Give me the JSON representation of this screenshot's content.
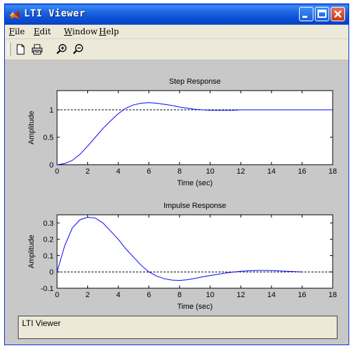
{
  "window": {
    "title": "LTI Viewer"
  },
  "menu": {
    "file": {
      "key": "F",
      "rest": "ile"
    },
    "edit": {
      "key": "E",
      "rest": "dit"
    },
    "window": {
      "key": "W",
      "rest": "indow"
    },
    "help": {
      "key": "H",
      "rest": "elp"
    }
  },
  "toolbar_icons": [
    "new-document-icon",
    "print-icon",
    "zoom-in-icon",
    "zoom-out-icon"
  ],
  "status": {
    "text": "LTI Viewer"
  },
  "colors": {
    "titlebar": "#0b4fd6",
    "response_line": "#0000ff",
    "plot_bg": "#ffffff",
    "figure_bg": "#c8c8c8"
  },
  "chart_data": [
    {
      "type": "line",
      "title": "Step Response",
      "xlabel": "Time (sec)",
      "ylabel": "Amplitude",
      "xlim": [
        0,
        18
      ],
      "ylim": [
        0,
        1.35
      ],
      "xticks": [
        "0",
        "2",
        "4",
        "6",
        "8",
        "10",
        "12",
        "14",
        "16",
        "18"
      ],
      "yticks": [
        "0",
        "0.5",
        "1"
      ],
      "reference_line": 1,
      "series": [
        {
          "x": [
            0,
            0.5,
            1,
            1.5,
            2,
            2.5,
            3,
            3.5,
            4,
            4.5,
            5,
            5.5,
            6,
            6.5,
            7,
            7.5,
            8,
            8.5,
            9,
            9.5,
            10,
            10.5,
            11,
            11.5,
            12,
            13,
            14,
            15,
            16,
            17,
            18
          ],
          "values": [
            0,
            0.02,
            0.08,
            0.19,
            0.34,
            0.5,
            0.66,
            0.8,
            0.93,
            1.03,
            1.09,
            1.12,
            1.13,
            1.12,
            1.1,
            1.08,
            1.05,
            1.03,
            1.01,
            1.0,
            0.99,
            0.99,
            0.99,
            0.99,
            1.0,
            1.0,
            1.0,
            1.0,
            1.0,
            1.0,
            1.0
          ]
        }
      ]
    },
    {
      "type": "line",
      "title": "Impulse Response",
      "xlabel": "Time (sec)",
      "ylabel": "Amplitude",
      "xlim": [
        0,
        18
      ],
      "ylim": [
        -0.1,
        0.35
      ],
      "xticks": [
        "0",
        "2",
        "4",
        "6",
        "8",
        "10",
        "12",
        "14",
        "16",
        "18"
      ],
      "yticks": [
        "-0.1",
        "0",
        "0.1",
        "0.2",
        "0.3"
      ],
      "reference_line": 0,
      "series": [
        {
          "x": [
            0,
            0.5,
            1,
            1.5,
            2,
            2.5,
            3,
            3.5,
            4,
            4.5,
            5,
            5.5,
            6,
            6.5,
            7,
            7.5,
            8,
            8.5,
            9,
            9.5,
            10,
            10.5,
            11,
            11.5,
            12,
            12.5,
            13,
            13.5,
            14,
            14.5,
            15,
            16
          ],
          "values": [
            0,
            0.16,
            0.27,
            0.32,
            0.335,
            0.33,
            0.3,
            0.25,
            0.2,
            0.14,
            0.09,
            0.04,
            0.0,
            -0.025,
            -0.042,
            -0.05,
            -0.052,
            -0.048,
            -0.04,
            -0.03,
            -0.022,
            -0.014,
            -0.007,
            -0.001,
            0.004,
            0.007,
            0.009,
            0.009,
            0.008,
            0.006,
            0.004,
            0.0
          ]
        }
      ]
    }
  ]
}
